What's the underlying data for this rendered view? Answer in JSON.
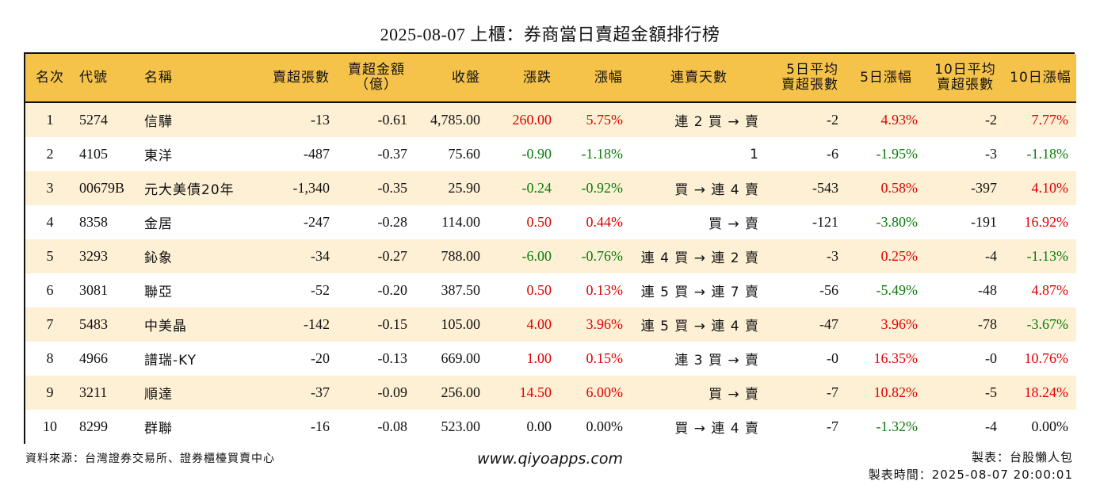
{
  "title": "2025-08-07 上櫃：券商當日賣超金額排行榜",
  "colors": {
    "header_bg": "#f6c34a",
    "stripe_bg": "#fdf0d4",
    "up": "#e00000",
    "down": "#0a7a0a"
  },
  "headers": {
    "rank": "名次",
    "code": "代號",
    "name": "名稱",
    "net_sell_lots": "賣超張數",
    "net_sell_amount_1": "賣超金額",
    "net_sell_amount_2": "（億）",
    "close": "收盤",
    "change": "漲跌",
    "change_pct": "漲幅",
    "streak": "連賣天數",
    "avg5_1": "5日平均",
    "avg5_2": "賣超張數",
    "chg5": "5日漲幅",
    "avg10_1": "10日平均",
    "avg10_2": "賣超張數",
    "chg10": "10日漲幅"
  },
  "rows": [
    {
      "rank": "1",
      "code": "5274",
      "name": "信驊",
      "lots": "-13",
      "amount": "-0.61",
      "close": "4,785.00",
      "change": "260.00",
      "change_dir": "up",
      "pct": "5.75%",
      "pct_dir": "up",
      "streak": "連 2 買 → 賣",
      "avg5": "-2",
      "chg5": "4.93%",
      "chg5_dir": "up",
      "avg10": "-2",
      "chg10": "7.77%",
      "chg10_dir": "up"
    },
    {
      "rank": "2",
      "code": "4105",
      "name": "東洋",
      "lots": "-487",
      "amount": "-0.37",
      "close": "75.60",
      "change": "-0.90",
      "change_dir": "down",
      "pct": "-1.18%",
      "pct_dir": "down",
      "streak": "1",
      "avg5": "-6",
      "chg5": "-1.95%",
      "chg5_dir": "down",
      "avg10": "-3",
      "chg10": "-1.18%",
      "chg10_dir": "down"
    },
    {
      "rank": "3",
      "code": "00679B",
      "name": "元大美債20年",
      "lots": "-1,340",
      "amount": "-0.35",
      "close": "25.90",
      "change": "-0.24",
      "change_dir": "down",
      "pct": "-0.92%",
      "pct_dir": "down",
      "streak": "買 → 連 4 賣",
      "avg5": "-543",
      "chg5": "0.58%",
      "chg5_dir": "up",
      "avg10": "-397",
      "chg10": "4.10%",
      "chg10_dir": "up"
    },
    {
      "rank": "4",
      "code": "8358",
      "name": "金居",
      "lots": "-247",
      "amount": "-0.28",
      "close": "114.00",
      "change": "0.50",
      "change_dir": "up",
      "pct": "0.44%",
      "pct_dir": "up",
      "streak": "買 → 賣",
      "avg5": "-121",
      "chg5": "-3.80%",
      "chg5_dir": "down",
      "avg10": "-191",
      "chg10": "16.92%",
      "chg10_dir": "up"
    },
    {
      "rank": "5",
      "code": "3293",
      "name": "鈊象",
      "lots": "-34",
      "amount": "-0.27",
      "close": "788.00",
      "change": "-6.00",
      "change_dir": "down",
      "pct": "-0.76%",
      "pct_dir": "down",
      "streak": "連 4 買 → 連 2 賣",
      "avg5": "-3",
      "chg5": "0.25%",
      "chg5_dir": "up",
      "avg10": "-4",
      "chg10": "-1.13%",
      "chg10_dir": "down"
    },
    {
      "rank": "6",
      "code": "3081",
      "name": "聯亞",
      "lots": "-52",
      "amount": "-0.20",
      "close": "387.50",
      "change": "0.50",
      "change_dir": "up",
      "pct": "0.13%",
      "pct_dir": "up",
      "streak": "連 5 買 → 連 7 賣",
      "avg5": "-56",
      "chg5": "-5.49%",
      "chg5_dir": "down",
      "avg10": "-48",
      "chg10": "4.87%",
      "chg10_dir": "up"
    },
    {
      "rank": "7",
      "code": "5483",
      "name": "中美晶",
      "lots": "-142",
      "amount": "-0.15",
      "close": "105.00",
      "change": "4.00",
      "change_dir": "up",
      "pct": "3.96%",
      "pct_dir": "up",
      "streak": "連 5 買 → 連 4 賣",
      "avg5": "-47",
      "chg5": "3.96%",
      "chg5_dir": "up",
      "avg10": "-78",
      "chg10": "-3.67%",
      "chg10_dir": "down"
    },
    {
      "rank": "8",
      "code": "4966",
      "name": "譜瑞-KY",
      "lots": "-20",
      "amount": "-0.13",
      "close": "669.00",
      "change": "1.00",
      "change_dir": "up",
      "pct": "0.15%",
      "pct_dir": "up",
      "streak": "連 3 買 → 賣",
      "avg5": "-0",
      "chg5": "16.35%",
      "chg5_dir": "up",
      "avg10": "-0",
      "chg10": "10.76%",
      "chg10_dir": "up"
    },
    {
      "rank": "9",
      "code": "3211",
      "name": "順達",
      "lots": "-37",
      "amount": "-0.09",
      "close": "256.00",
      "change": "14.50",
      "change_dir": "up",
      "pct": "6.00%",
      "pct_dir": "up",
      "streak": "買 → 賣",
      "avg5": "-7",
      "chg5": "10.82%",
      "chg5_dir": "up",
      "avg10": "-5",
      "chg10": "18.24%",
      "chg10_dir": "up"
    },
    {
      "rank": "10",
      "code": "8299",
      "name": "群聯",
      "lots": "-16",
      "amount": "-0.08",
      "close": "523.00",
      "change": "0.00",
      "change_dir": "flat",
      "pct": "0.00%",
      "pct_dir": "flat",
      "streak": "買 → 連 4 賣",
      "avg5": "-7",
      "chg5": "-1.32%",
      "chg5_dir": "down",
      "avg10": "-4",
      "chg10": "0.00%",
      "chg10_dir": "flat"
    }
  ],
  "footer": {
    "source": "資料來源：台灣證券交易所、證券櫃檯買賣中心",
    "website": "www.qiyoapps.com",
    "author": "製表：台股懶人包",
    "made_time": "製表時間：2025-08-07 20:00:01"
  }
}
